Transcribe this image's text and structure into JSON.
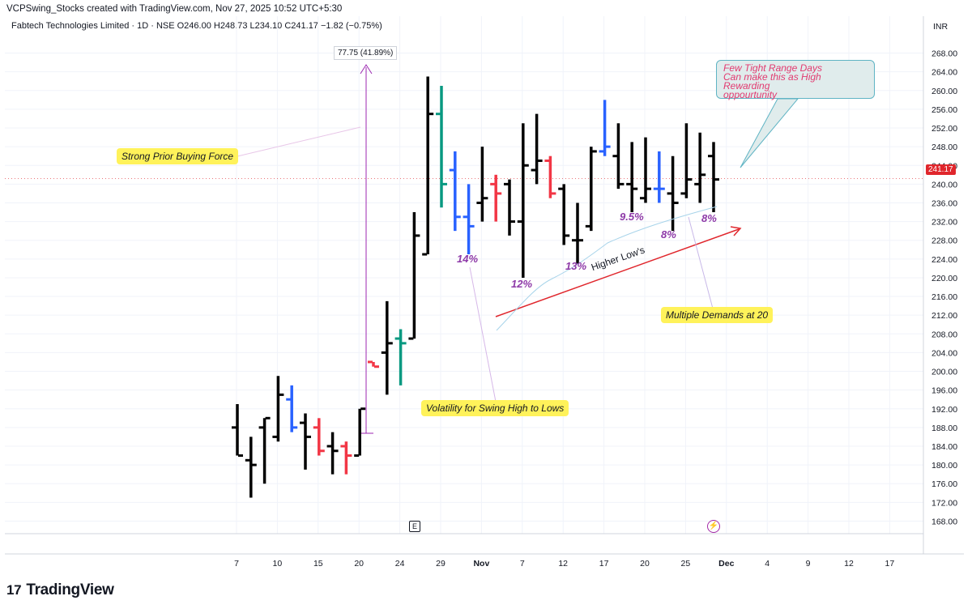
{
  "header": {
    "credit": "VCPSwing_Stocks created with TradingView.com, Nov 27, 2025 10:52 UTC+5:30",
    "symbol_line": "Fabtech Technologies Limited · 1D · NSE  O246.00  H248.73  L234.10  C241.17  −1.82 (−0.75%)",
    "currency": "INR"
  },
  "last_price_label": "241.17",
  "measure_label": "77.75 (41.89%)",
  "brand": {
    "logo": "17",
    "name": "TradingView"
  },
  "markers": {
    "earnings": "E",
    "flash": "⚡"
  },
  "annotations": {
    "strong_prior": "Strong Prior Buying Force",
    "volatility": "Volatility for Swing High to Lows",
    "multiple_demands": "Multiple Demands at 20",
    "higher_lows": "Higher Low's",
    "callout_line1": "Few Tight Range Days",
    "callout_line2": "Can make this as High Rewarding",
    "callout_line3": "oppourtunity"
  },
  "percent_labels": [
    "14%",
    "12%",
    "13%",
    "9.5%",
    "8%",
    "8%"
  ],
  "colors": {
    "black": "#000000",
    "blue": "#2962ff",
    "red": "#f23645",
    "green": "#089981"
  },
  "chart_data": {
    "type": "ohlc",
    "y_axis": {
      "min": 166,
      "max": 270,
      "ticks": [
        168,
        172,
        176,
        180,
        184,
        188,
        192,
        196,
        200,
        204,
        208,
        212,
        216,
        220,
        224,
        228,
        232,
        236,
        240,
        244,
        248,
        252,
        256,
        260,
        264,
        268
      ]
    },
    "x_ticks": [
      "7",
      "10",
      "15",
      "20",
      "24",
      "29",
      "Nov",
      "7",
      "12",
      "17",
      "20",
      "25",
      "Dec",
      "4",
      "9",
      "12",
      "17"
    ],
    "bars": [
      {
        "o": 188,
        "h": 193,
        "l": 182,
        "c": 182,
        "color": "black"
      },
      {
        "o": 181,
        "h": 186,
        "l": 173,
        "c": 180,
        "color": "black"
      },
      {
        "o": 188,
        "h": 190,
        "l": 176,
        "c": 190,
        "color": "black"
      },
      {
        "o": 186,
        "h": 199,
        "l": 185,
        "c": 195,
        "color": "black"
      },
      {
        "o": 194,
        "h": 197,
        "l": 187,
        "c": 188,
        "color": "blue"
      },
      {
        "o": 189,
        "h": 191,
        "l": 179,
        "c": 186,
        "color": "black"
      },
      {
        "o": 188,
        "h": 190,
        "l": 182,
        "c": 183,
        "color": "red"
      },
      {
        "o": 184,
        "h": 187,
        "l": 178,
        "c": 183,
        "color": "black"
      },
      {
        "o": 184,
        "h": 185,
        "l": 178,
        "c": 182,
        "color": "red"
      },
      {
        "o": 182,
        "h": 192,
        "l": 182,
        "c": 192,
        "color": "black"
      },
      {
        "o": 202,
        "h": 202,
        "l": 201,
        "c": 201,
        "color": "red"
      },
      {
        "o": 204,
        "h": 215,
        "l": 195,
        "c": 206,
        "color": "black"
      },
      {
        "o": 207,
        "h": 209,
        "l": 197,
        "c": 206,
        "color": "green"
      },
      {
        "o": 207,
        "h": 234,
        "l": 207,
        "c": 229,
        "color": "black"
      },
      {
        "o": 225,
        "h": 263,
        "l": 225,
        "c": 255,
        "color": "black"
      },
      {
        "o": 255,
        "h": 261,
        "l": 235,
        "c": 240,
        "color": "green"
      },
      {
        "o": 243,
        "h": 247,
        "l": 230,
        "c": 233,
        "color": "blue"
      },
      {
        "o": 233,
        "h": 240,
        "l": 225,
        "c": 231,
        "color": "blue"
      },
      {
        "o": 236,
        "h": 248,
        "l": 232,
        "c": 237,
        "color": "black"
      },
      {
        "o": 240,
        "h": 242,
        "l": 232,
        "c": 238,
        "color": "red"
      },
      {
        "o": 240,
        "h": 241,
        "l": 229,
        "c": 232,
        "color": "black"
      },
      {
        "o": 232,
        "h": 253,
        "l": 220,
        "c": 244,
        "color": "black"
      },
      {
        "o": 243,
        "h": 255,
        "l": 240,
        "c": 245,
        "color": "black"
      },
      {
        "o": 245,
        "h": 246,
        "l": 237,
        "c": 238,
        "color": "red"
      },
      {
        "o": 239,
        "h": 240,
        "l": 227,
        "c": 229,
        "color": "black"
      },
      {
        "o": 228,
        "h": 236,
        "l": 223,
        "c": 228,
        "color": "black"
      },
      {
        "o": 231,
        "h": 248,
        "l": 230,
        "c": 247,
        "color": "black"
      },
      {
        "o": 247,
        "h": 258,
        "l": 246,
        "c": 248,
        "color": "blue"
      },
      {
        "o": 246,
        "h": 253,
        "l": 239,
        "c": 240,
        "color": "black"
      },
      {
        "o": 240,
        "h": 249,
        "l": 234,
        "c": 239,
        "color": "black"
      },
      {
        "o": 237,
        "h": 250,
        "l": 236,
        "c": 239,
        "color": "black"
      },
      {
        "o": 239,
        "h": 247,
        "l": 236,
        "c": 239,
        "color": "blue"
      },
      {
        "o": 238,
        "h": 246,
        "l": 230,
        "c": 236,
        "color": "black"
      },
      {
        "o": 238,
        "h": 253,
        "l": 237,
        "c": 241,
        "color": "black"
      },
      {
        "o": 240,
        "h": 251,
        "l": 236,
        "c": 242,
        "color": "black"
      },
      {
        "o": 246,
        "h": 249,
        "l": 234,
        "c": 241,
        "color": "black"
      }
    ]
  }
}
